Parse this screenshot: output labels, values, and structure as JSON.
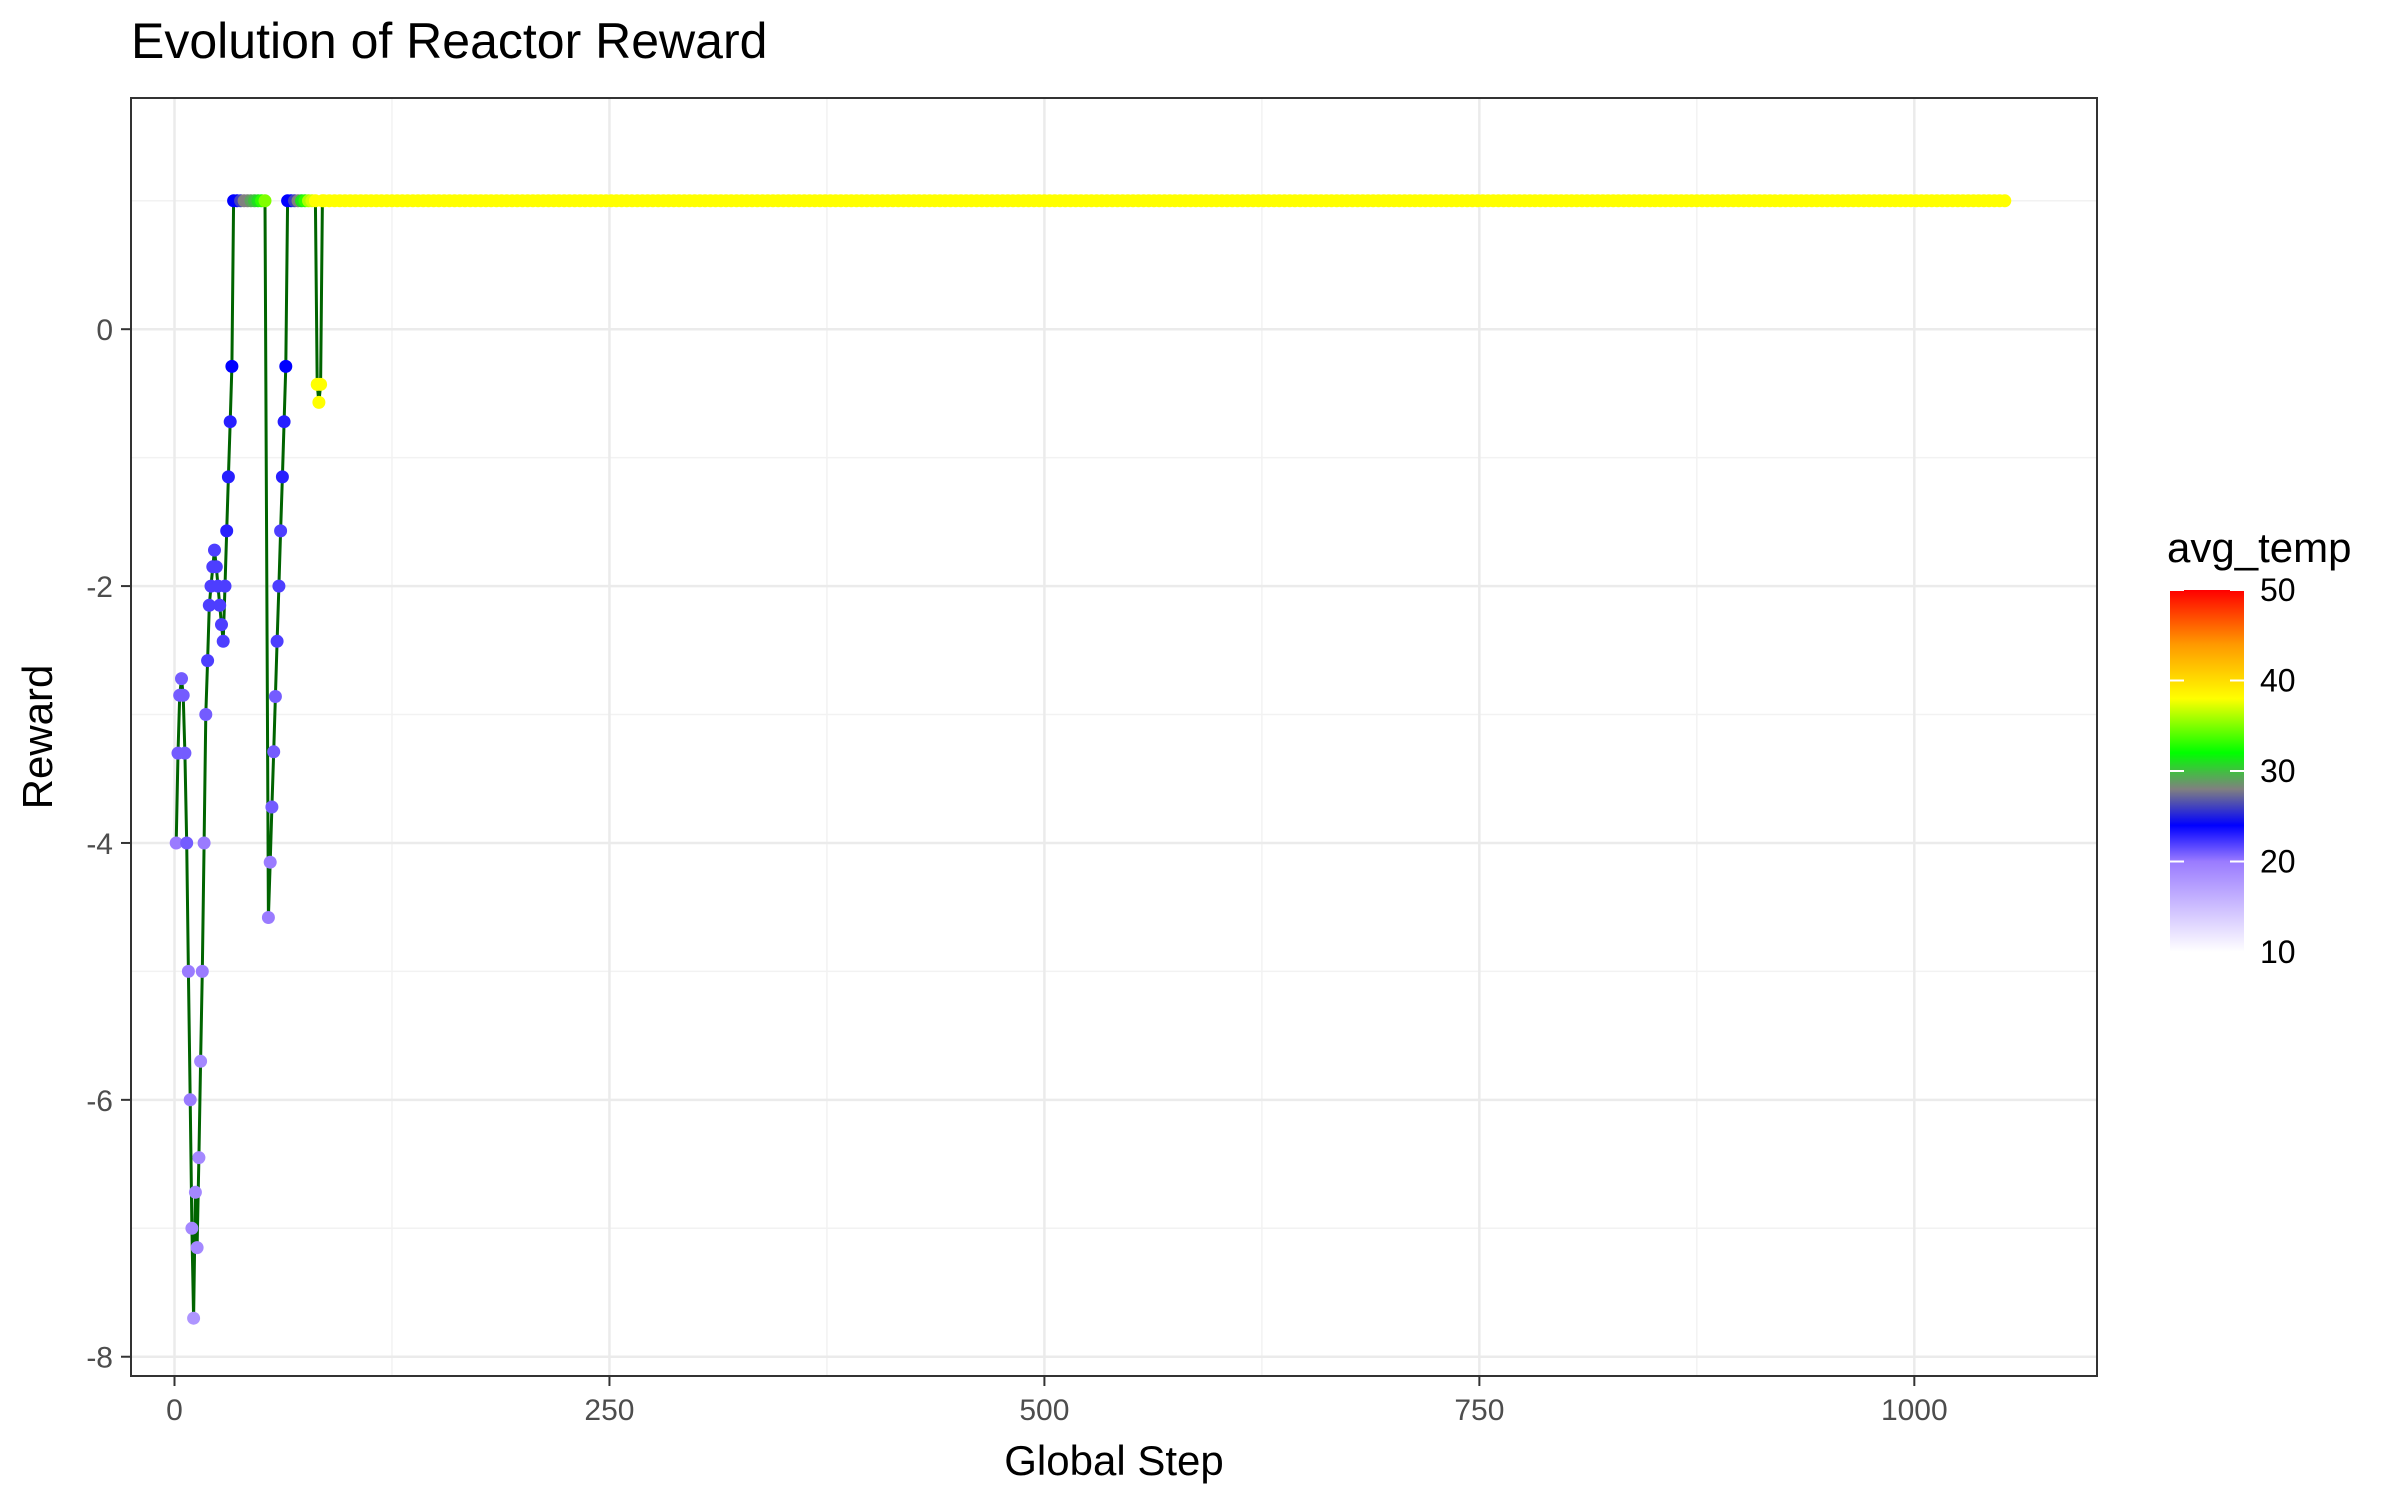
{
  "chart_data": {
    "type": "line",
    "title": "Evolution of Reactor Reward",
    "xlabel": "Global Step",
    "ylabel": "Reward",
    "xlim": [
      -25,
      1105
    ],
    "ylim": [
      -8.15,
      1.8
    ],
    "x_ticks": [
      0,
      250,
      500,
      750,
      1000
    ],
    "x_tick_labels": [
      "0",
      "250",
      "500",
      "750",
      "1000"
    ],
    "y_ticks": [
      -8,
      -6,
      -4,
      -2,
      0
    ],
    "y_tick_labels": [
      "-8",
      "-6",
      "-4",
      "-2",
      "0"
    ],
    "grid": true,
    "line_color": "#006400",
    "legend": {
      "title": "avg_temp",
      "placement": "right",
      "ticks": [
        10,
        20,
        30,
        40,
        50
      ],
      "tick_labels": [
        "10",
        "20",
        "30",
        "40",
        "50"
      ],
      "color_stops": [
        {
          "value": 10,
          "color": "#ffffff"
        },
        {
          "value": 20,
          "color": "#9a7bff"
        },
        {
          "value": 24,
          "color": "#0000ff"
        },
        {
          "value": 28,
          "color": "#808080"
        },
        {
          "value": 32,
          "color": "#00ff00"
        },
        {
          "value": 38,
          "color": "#ffff00"
        },
        {
          "value": 44,
          "color": "#ff9900"
        },
        {
          "value": 50,
          "color": "#ff0000"
        }
      ]
    },
    "series": {
      "points": [
        {
          "x": 1,
          "y": -4.0,
          "t": 20
        },
        {
          "x": 2,
          "y": -3.3,
          "t": 21
        },
        {
          "x": 3,
          "y": -2.85,
          "t": 21
        },
        {
          "x": 4,
          "y": -2.72,
          "t": 21
        },
        {
          "x": 5,
          "y": -2.85,
          "t": 21
        },
        {
          "x": 6,
          "y": -3.3,
          "t": 21
        },
        {
          "x": 7,
          "y": -4.0,
          "t": 21
        },
        {
          "x": 8,
          "y": -5.0,
          "t": 20
        },
        {
          "x": 9,
          "y": -6.0,
          "t": 20
        },
        {
          "x": 10,
          "y": -7.0,
          "t": 19
        },
        {
          "x": 11,
          "y": -7.7,
          "t": 18
        },
        {
          "x": 12,
          "y": -6.72,
          "t": 19
        },
        {
          "x": 13,
          "y": -7.15,
          "t": 19
        },
        {
          "x": 14,
          "y": -6.45,
          "t": 19
        },
        {
          "x": 15,
          "y": -5.7,
          "t": 19
        },
        {
          "x": 16,
          "y": -5.0,
          "t": 20
        },
        {
          "x": 17,
          "y": -4.0,
          "t": 20
        },
        {
          "x": 18,
          "y": -3.0,
          "t": 21
        },
        {
          "x": 19,
          "y": -2.58,
          "t": 22
        },
        {
          "x": 20,
          "y": -2.15,
          "t": 22
        },
        {
          "x": 21,
          "y": -2.0,
          "t": 22
        },
        {
          "x": 22,
          "y": -1.85,
          "t": 22
        },
        {
          "x": 23,
          "y": -1.72,
          "t": 22
        },
        {
          "x": 24,
          "y": -1.85,
          "t": 22
        },
        {
          "x": 25,
          "y": -2.0,
          "t": 22
        },
        {
          "x": 26,
          "y": -2.15,
          "t": 22
        },
        {
          "x": 27,
          "y": -2.3,
          "t": 22
        },
        {
          "x": 28,
          "y": -2.43,
          "t": 22
        },
        {
          "x": 29,
          "y": -2.0,
          "t": 22
        },
        {
          "x": 30,
          "y": -1.57,
          "t": 23
        },
        {
          "x": 31,
          "y": -1.15,
          "t": 23
        },
        {
          "x": 32,
          "y": -0.72,
          "t": 23
        },
        {
          "x": 33,
          "y": -0.29,
          "t": 24
        },
        {
          "x": 34,
          "y": 1.0,
          "t": 24
        },
        {
          "x": 36,
          "y": 1.0,
          "t": 24
        },
        {
          "x": 38,
          "y": 1.0,
          "t": 26
        },
        {
          "x": 40,
          "y": 1.0,
          "t": 28
        },
        {
          "x": 42,
          "y": 1.0,
          "t": 28
        },
        {
          "x": 44,
          "y": 1.0,
          "t": 29
        },
        {
          "x": 46,
          "y": 1.0,
          "t": 30
        },
        {
          "x": 48,
          "y": 1.0,
          "t": 31
        },
        {
          "x": 50,
          "y": 1.0,
          "t": 33
        },
        {
          "x": 52,
          "y": 1.0,
          "t": 35
        },
        {
          "x": 54,
          "y": -4.58,
          "t": 20
        },
        {
          "x": 55,
          "y": -4.15,
          "t": 20
        },
        {
          "x": 56,
          "y": -3.72,
          "t": 21
        },
        {
          "x": 57,
          "y": -3.29,
          "t": 21
        },
        {
          "x": 58,
          "y": -2.86,
          "t": 21
        },
        {
          "x": 59,
          "y": -2.43,
          "t": 22
        },
        {
          "x": 60,
          "y": -2.0,
          "t": 22
        },
        {
          "x": 61,
          "y": -1.57,
          "t": 22
        },
        {
          "x": 62,
          "y": -1.15,
          "t": 23
        },
        {
          "x": 63,
          "y": -0.72,
          "t": 23
        },
        {
          "x": 64,
          "y": -0.29,
          "t": 24
        },
        {
          "x": 65,
          "y": 1.0,
          "t": 24
        },
        {
          "x": 67,
          "y": 1.0,
          "t": 24
        },
        {
          "x": 69,
          "y": 1.0,
          "t": 26
        },
        {
          "x": 71,
          "y": 1.0,
          "t": 28
        },
        {
          "x": 73,
          "y": 1.0,
          "t": 31
        },
        {
          "x": 75,
          "y": 1.0,
          "t": 33
        },
        {
          "x": 77,
          "y": 1.0,
          "t": 36
        },
        {
          "x": 79,
          "y": 1.0,
          "t": 37
        },
        {
          "x": 81,
          "y": 1.0,
          "t": 38
        },
        {
          "x": 82,
          "y": -0.43,
          "t": 38
        },
        {
          "x": 83,
          "y": -0.57,
          "t": 38
        },
        {
          "x": 84,
          "y": -0.43,
          "t": 38
        },
        {
          "x": 85,
          "y": 1.0,
          "t": 38
        }
      ],
      "plateau": {
        "x_start": 86,
        "x_end": 1053,
        "step": 3,
        "y": 1.0,
        "t": 38
      }
    }
  }
}
